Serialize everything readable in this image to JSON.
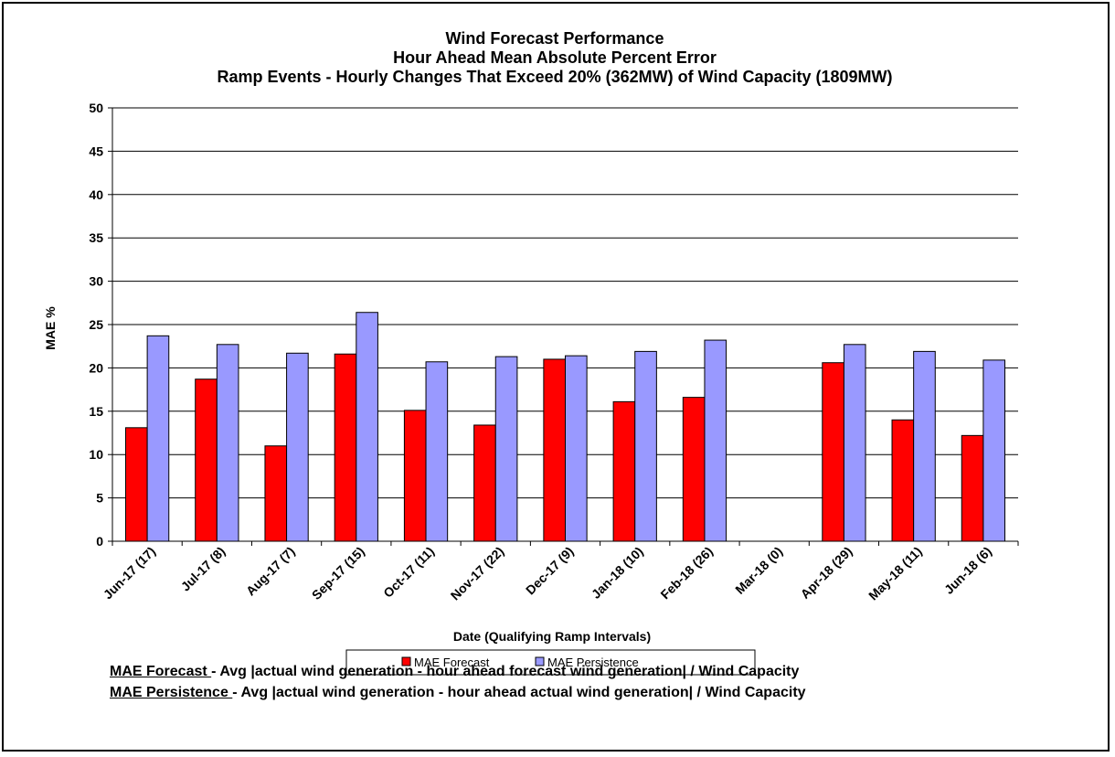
{
  "chart_data": {
    "type": "bar",
    "title": [
      "Wind Forecast Performance",
      "Hour Ahead Mean Absolute Percent Error",
      "Ramp Events - Hourly Changes That Exceed 20% (362MW) of Wind Capacity (1809MW)"
    ],
    "xlabel": "Date (Qualifying Ramp Intervals)",
    "ylabel": "MAE %",
    "ylim": [
      0,
      50
    ],
    "yticks": [
      0,
      5,
      10,
      15,
      20,
      25,
      30,
      35,
      40,
      45,
      50
    ],
    "grid": true,
    "legend_position": "bottom",
    "categories": [
      "Jun-17 (17)",
      "Jul-17 (8)",
      "Aug-17 (7)",
      "Sep-17 (15)",
      "Oct-17 (11)",
      "Nov-17 (22)",
      "Dec-17 (9)",
      "Jan-18 (10)",
      "Feb-18 (26)",
      "Mar-18 (0)",
      "Apr-18 (29)",
      "May-18 (11)",
      "Jun-18 (6)"
    ],
    "series": [
      {
        "name": "MAE Forecast",
        "color": "#ff0000",
        "values": [
          13.1,
          18.7,
          11.0,
          21.6,
          15.1,
          13.4,
          21.0,
          16.1,
          16.6,
          0,
          20.6,
          14.0,
          12.2
        ]
      },
      {
        "name": "MAE Persistence",
        "color": "#9999ff",
        "values": [
          23.7,
          22.7,
          21.7,
          26.4,
          20.7,
          21.3,
          21.4,
          21.9,
          23.2,
          0,
          22.7,
          21.9,
          20.9
        ]
      }
    ]
  },
  "definitions": [
    {
      "term": "MAE Forecast ",
      "text": "- Avg |actual wind generation - hour ahead forecast wind generation| / Wind Capacity"
    },
    {
      "term": "MAE Persistence ",
      "text": "- Avg |actual wind generation - hour ahead actual wind generation| / Wind Capacity"
    }
  ]
}
